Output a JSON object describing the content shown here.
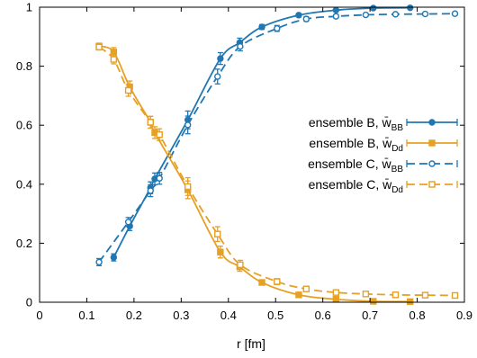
{
  "chart_data": {
    "type": "line",
    "title": "",
    "xlabel": "r [fm]",
    "ylabel": "",
    "xlim": [
      0,
      0.9
    ],
    "ylim": [
      0,
      1
    ],
    "xticks": [
      "0",
      "0.1",
      "0.2",
      "0.3",
      "0.4",
      "0.5",
      "0.6",
      "0.7",
      "0.8",
      "0.9"
    ],
    "yticks": [
      "0",
      "0.2",
      "0.4",
      "0.6",
      "0.8",
      "1"
    ],
    "grid": false,
    "legend_position": "right",
    "series": [
      {
        "name": "ensemble B, w̄_BB",
        "legend_main": "ensemble B, w̄",
        "legend_sub": "BB",
        "color": "#1f77b4",
        "marker": "circle",
        "line_style": "solid",
        "x": [
          0.157,
          0.191,
          0.235,
          0.244,
          0.314,
          0.383,
          0.424,
          0.471,
          0.549,
          0.628,
          0.707,
          0.785
        ],
        "y": [
          0.152,
          0.258,
          0.388,
          0.418,
          0.618,
          0.826,
          0.88,
          0.933,
          0.973,
          0.99,
          0.997,
          0.998
        ],
        "err": [
          0.012,
          0.015,
          0.02,
          0.02,
          0.03,
          0.02,
          0.015,
          0.008,
          0.006,
          0.004,
          0.002,
          0.002
        ]
      },
      {
        "name": "ensemble B, w̄_Dd",
        "legend_main": "ensemble B, w̄",
        "legend_sub": "Dd",
        "color": "#e6a023",
        "marker": "square",
        "line_style": "solid",
        "x": [
          0.126,
          0.157,
          0.191,
          0.235,
          0.244,
          0.314,
          0.383,
          0.424,
          0.471,
          0.549,
          0.628,
          0.707,
          0.785
        ],
        "y": [
          0.868,
          0.848,
          0.73,
          0.61,
          0.575,
          0.381,
          0.17,
          0.12,
          0.067,
          0.025,
          0.01,
          0.003,
          0.002
        ],
        "err": [
          0.01,
          0.015,
          0.02,
          0.02,
          0.02,
          0.03,
          0.02,
          0.015,
          0.008,
          0.006,
          0.004,
          0.002,
          0.002
        ]
      },
      {
        "name": "ensemble C, w̄_BB",
        "legend_main": "ensemble C, w̄",
        "legend_sub": "BB",
        "color": "#1f77b4",
        "marker": "circle-open",
        "line_style": "dashed",
        "x": [
          0.126,
          0.188,
          0.235,
          0.254,
          0.314,
          0.377,
          0.425,
          0.503,
          0.565,
          0.628,
          0.691,
          0.754,
          0.817,
          0.88
        ],
        "y": [
          0.136,
          0.272,
          0.378,
          0.42,
          0.601,
          0.765,
          0.867,
          0.928,
          0.96,
          0.969,
          0.974,
          0.976,
          0.977,
          0.978
        ],
        "err": [
          0.012,
          0.015,
          0.02,
          0.02,
          0.03,
          0.025,
          0.015,
          0.01,
          0.008,
          0.006,
          0.004,
          0.003,
          0.003,
          0.003
        ]
      },
      {
        "name": "ensemble C, w̄_Dd",
        "legend_main": "ensemble C, w̄",
        "legend_sub": "Dd",
        "color": "#e6a023",
        "marker": "square-open",
        "line_style": "dashed",
        "x": [
          0.126,
          0.157,
          0.188,
          0.235,
          0.254,
          0.314,
          0.377,
          0.425,
          0.503,
          0.565,
          0.628,
          0.691,
          0.754,
          0.817,
          0.88
        ],
        "y": [
          0.865,
          0.823,
          0.718,
          0.61,
          0.568,
          0.392,
          0.231,
          0.127,
          0.07,
          0.045,
          0.033,
          0.028,
          0.025,
          0.024,
          0.023
        ],
        "err": [
          0.01,
          0.015,
          0.02,
          0.02,
          0.02,
          0.03,
          0.025,
          0.015,
          0.01,
          0.008,
          0.006,
          0.004,
          0.003,
          0.003,
          0.003
        ]
      }
    ]
  }
}
